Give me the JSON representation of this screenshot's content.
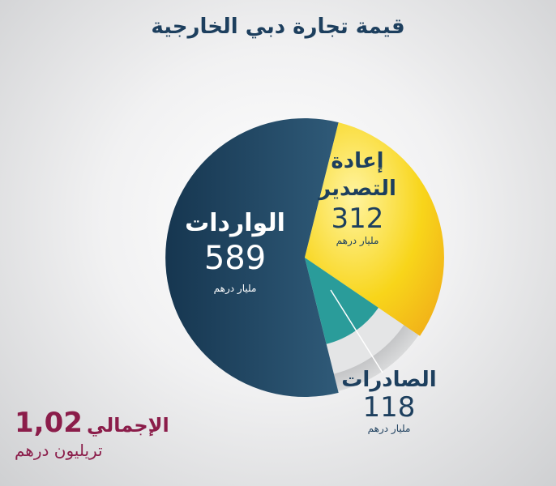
{
  "chart_data": {
    "type": "pie",
    "title": "قيمة تجارة دبي الخارجية",
    "unit": "مليار درهم",
    "slices": [
      {
        "name": "الواردات",
        "value": 589,
        "color": "#1e4766"
      },
      {
        "name": "إعادة التصدير",
        "value": 312,
        "color": "#f6c90e"
      },
      {
        "name": "الصادرات",
        "value": 118,
        "color": "#2a9c9a"
      }
    ],
    "total": {
      "label": "الإجمالي",
      "value": "1,02",
      "unit": "تريليون درهم",
      "color": "#8b1d4a"
    }
  }
}
